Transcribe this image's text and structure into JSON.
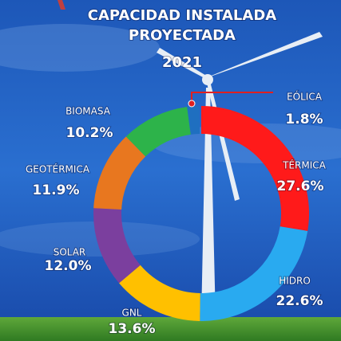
{
  "chart_data": {
    "type": "donut",
    "title_lines": [
      "CAPACIDAD INSTALADA",
      "PROYECTADA"
    ],
    "subtitle": "2021",
    "categories": [
      "TÉRMICA",
      "HIDRO",
      "GNL",
      "SOLAR",
      "GEOTÉRMICA",
      "BIOMASA",
      "EÓLICA"
    ],
    "values": [
      27.6,
      22.6,
      13.6,
      12.0,
      11.9,
      10.2,
      1.8
    ],
    "value_labels": [
      "27.6%",
      "22.6%",
      "13.6%",
      "12.0%",
      "11.9%",
      "10.2%",
      "1.8%"
    ],
    "colors": [
      "#ff1a1a",
      "#29aaf0",
      "#ffc000",
      "#7b3f9e",
      "#e8771f",
      "#2db34a",
      "#1f6fc0"
    ]
  }
}
